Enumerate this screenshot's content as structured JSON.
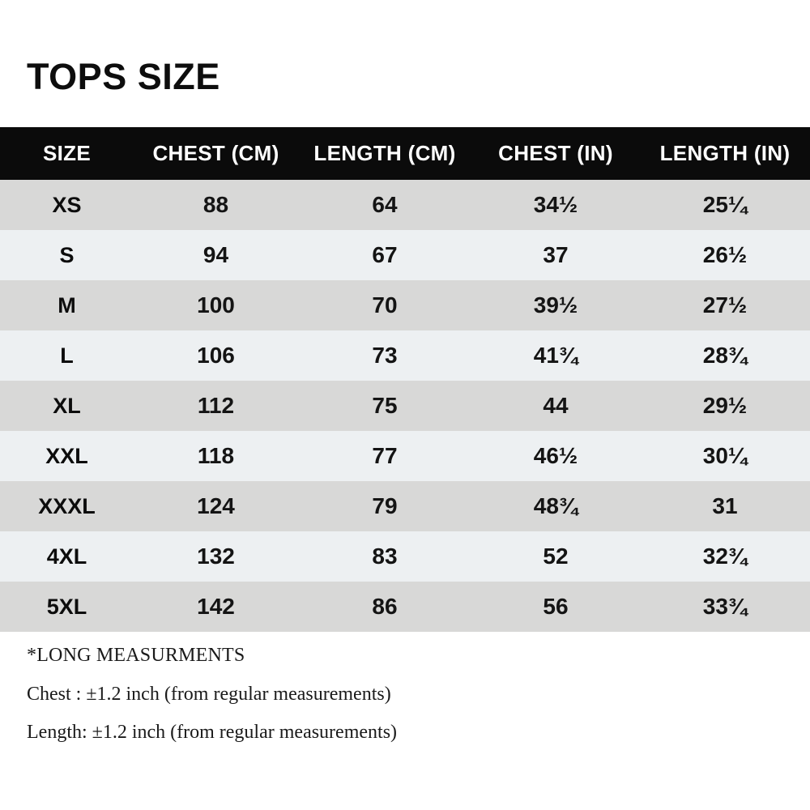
{
  "page": {
    "title": "TOPS SIZE"
  },
  "colors": {
    "header_bg": "#0b0b0b",
    "header_text": "#ffffff",
    "row_gray": "#d8d8d7",
    "row_light": "#edf0f2",
    "text": "#111111",
    "background": "#ffffff"
  },
  "table": {
    "columns": [
      "SIZE",
      "CHEST (CM)",
      "LENGTH (CM)",
      "CHEST (IN)",
      "LENGTH (IN)"
    ],
    "rows": [
      {
        "size": "XS",
        "chest_cm": "88",
        "length_cm": "64",
        "chest_in": "34½",
        "length_in": "25¼"
      },
      {
        "size": "S",
        "chest_cm": "94",
        "length_cm": "67",
        "chest_in": "37",
        "length_in": "26½"
      },
      {
        "size": "M",
        "chest_cm": "100",
        "length_cm": "70",
        "chest_in": "39½",
        "length_in": "27½"
      },
      {
        "size": "L",
        "chest_cm": "106",
        "length_cm": "73",
        "chest_in": "41¾",
        "length_in": "28¾"
      },
      {
        "size": "XL",
        "chest_cm": "112",
        "length_cm": "75",
        "chest_in": "44",
        "length_in": "29½"
      },
      {
        "size": "XXL",
        "chest_cm": "118",
        "length_cm": "77",
        "chest_in": "46½",
        "length_in": "30¼"
      },
      {
        "size": "XXXL",
        "chest_cm": "124",
        "length_cm": "79",
        "chest_in": "48¾",
        "length_in": "31"
      },
      {
        "size": "4XL",
        "chest_cm": "132",
        "length_cm": "83",
        "chest_in": "52",
        "length_in": "32¾"
      },
      {
        "size": "5XL",
        "chest_cm": "142",
        "length_cm": "86",
        "chest_in": "56",
        "length_in": "33¾"
      }
    ]
  },
  "notes": {
    "heading": "*LONG MEASURMENTS",
    "chest": "Chest : ±1.2 inch (from regular measurements)",
    "length": "Length: ±1.2 inch (from regular measurements)"
  },
  "chart_data": {
    "type": "table",
    "title": "TOPS SIZE",
    "columns": [
      "SIZE",
      "CHEST (CM)",
      "LENGTH (CM)",
      "CHEST (IN)",
      "LENGTH (IN)"
    ],
    "rows": [
      [
        "XS",
        88,
        64,
        "34½",
        "25¼"
      ],
      [
        "S",
        94,
        67,
        "37",
        "26½"
      ],
      [
        "M",
        100,
        70,
        "39½",
        "27½"
      ],
      [
        "L",
        106,
        73,
        "41¾",
        "28¾"
      ],
      [
        "XL",
        112,
        75,
        "44",
        "29½"
      ],
      [
        "XXL",
        118,
        77,
        "46½",
        "30¼"
      ],
      [
        "XXXL",
        124,
        79,
        "48¾",
        "31"
      ],
      [
        "4XL",
        132,
        83,
        "52",
        "32¾"
      ],
      [
        "5XL",
        142,
        86,
        "56",
        "33¾"
      ]
    ],
    "footnotes": [
      "*LONG MEASURMENTS",
      "Chest : ±1.2 inch (from regular measurements)",
      "Length: ±1.2 inch (from regular measurements)"
    ],
    "layout_hints": {
      "header_style": "black background, white bold text",
      "row_striping": "odd rows gray #d8d8d7, even rows light #edf0f2",
      "alignment": "all cells centered"
    }
  }
}
